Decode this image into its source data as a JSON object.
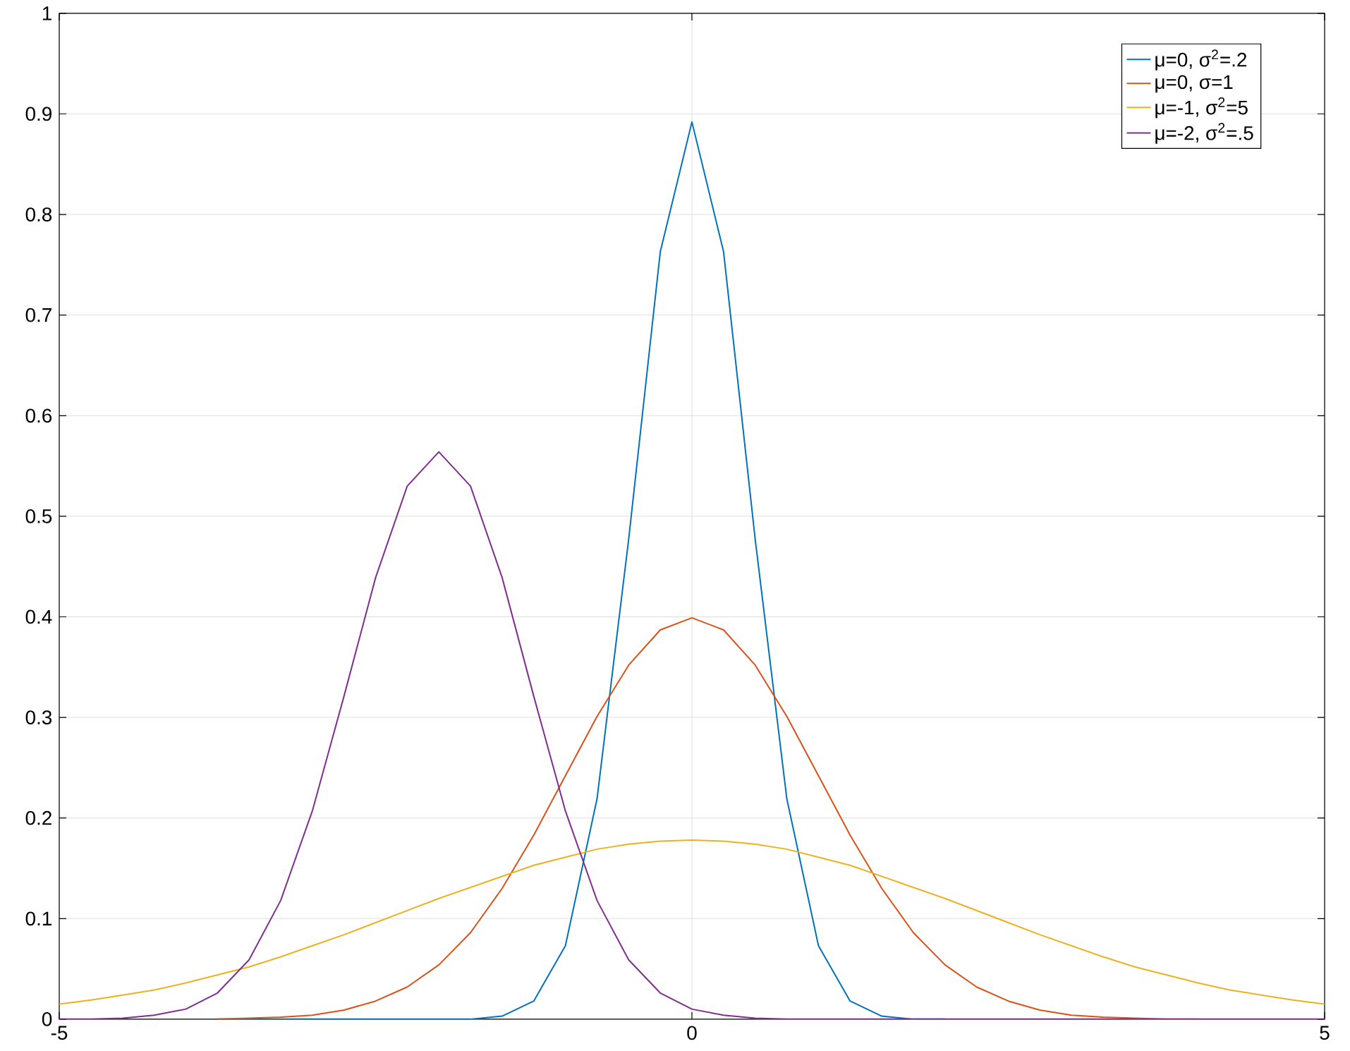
{
  "chart_data": {
    "type": "line",
    "x": [
      -5,
      -4.75,
      -4.5,
      -4.25,
      -4,
      -3.75,
      -3.5,
      -3.25,
      -3,
      -2.75,
      -2.5,
      -2.25,
      -2,
      -1.75,
      -1.5,
      -1.25,
      -1,
      -0.75,
      -0.5,
      -0.25,
      0,
      0.25,
      0.5,
      0.75,
      1,
      1.25,
      1.5,
      1.75,
      2,
      2.25,
      2.5,
      2.75,
      3,
      3.25,
      3.5,
      3.75,
      4,
      4.25,
      4.5,
      4.75,
      5
    ],
    "series": [
      {
        "name": "μ=0, σ$^{2}$=.2",
        "color": "#0072bd",
        "values": [
          null,
          null,
          null,
          null,
          null,
          0,
          0,
          0,
          0,
          0,
          0,
          0,
          0,
          0,
          0.003,
          0.018,
          0.073,
          0.219,
          0.477,
          0.763,
          0.892,
          0.763,
          0.477,
          0.219,
          0.073,
          0.018,
          0.003,
          0,
          0,
          null,
          null,
          null,
          null,
          null,
          null,
          null,
          null,
          null,
          null,
          null,
          null
        ]
      },
      {
        "name": "μ=0, σ=1",
        "color": "#d95319",
        "values": [
          null,
          null,
          null,
          null,
          null,
          0,
          0.001,
          0.002,
          0.004,
          0.009,
          0.018,
          0.032,
          0.054,
          0.086,
          0.13,
          0.183,
          0.242,
          0.301,
          0.352,
          0.387,
          0.399,
          0.387,
          0.352,
          0.301,
          0.242,
          0.183,
          0.13,
          0.086,
          0.054,
          0.032,
          0.018,
          0.009,
          0.004,
          0.002,
          0.001,
          0,
          0,
          null,
          null,
          null,
          null
        ]
      },
      {
        "name": "μ=-1, σ$^{2}$=5",
        "color": "#edb120",
        "values": [
          0.015,
          0.019,
          0.024,
          0.029,
          0.036,
          0.044,
          0.052,
          0.062,
          0.073,
          0.084,
          0.096,
          0.108,
          0.12,
          0.131,
          0.142,
          0.153,
          0.161,
          0.169,
          0.174,
          0.177,
          0.178,
          0.177,
          0.174,
          0.169,
          0.161,
          0.153,
          0.142,
          0.131,
          0.12,
          0.108,
          0.096,
          0.084,
          0.073,
          0.062,
          0.052,
          0.044,
          0.036,
          0.029,
          0.024,
          0.019,
          0.015
        ]
      },
      {
        "name": "μ=-2, σ$^{2}$=.5",
        "color": "#7e2f8e",
        "values": [
          0,
          0,
          0.001,
          0.004,
          0.01,
          0.026,
          0.059,
          0.118,
          0.207,
          0.321,
          0.439,
          0.53,
          0.564,
          0.53,
          0.439,
          0.321,
          0.207,
          0.118,
          0.059,
          0.026,
          0.01,
          0.004,
          0.001,
          0,
          0,
          0,
          0,
          0,
          0,
          0,
          0,
          0,
          0,
          0,
          0,
          0,
          0,
          0,
          0,
          0,
          0
        ]
      }
    ],
    "xlim": [
      -5,
      5
    ],
    "xticks": [
      -5,
      0,
      5
    ],
    "ylim": [
      0,
      1
    ],
    "yticks": [
      0,
      0.1,
      0.2,
      0.3,
      0.4,
      0.5,
      0.6,
      0.7,
      0.8,
      0.9,
      1
    ],
    "grid": true,
    "legend": "top right",
    "marker": "none",
    "line_style": "solid"
  }
}
